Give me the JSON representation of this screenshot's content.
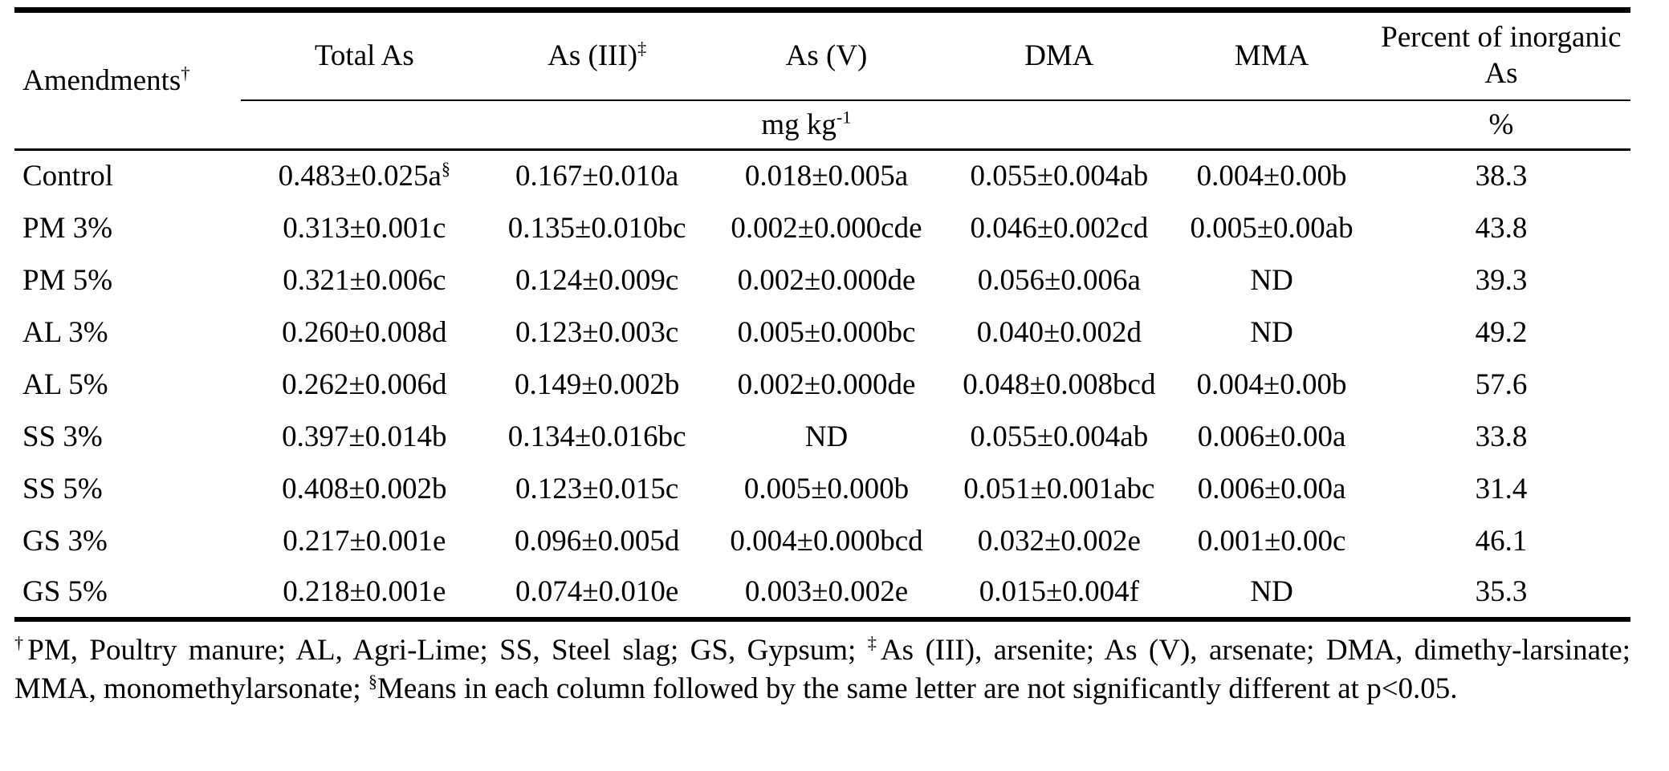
{
  "table": {
    "amendments_header": {
      "label": "Amendments",
      "sup": "†"
    },
    "column_headers": [
      {
        "label": "Total As",
        "sup": ""
      },
      {
        "label": "As (III)",
        "sup": "‡"
      },
      {
        "label": "As (V)",
        "sup": ""
      },
      {
        "label": "DMA",
        "sup": ""
      },
      {
        "label": "MMA",
        "sup": ""
      },
      {
        "label": "Percent of inorganic As",
        "sup": ""
      }
    ],
    "units": {
      "concentration": "mg kg",
      "concentration_sup": "-1",
      "percent": "%"
    },
    "rows": [
      {
        "amendment": "Control",
        "total_as": "0.483±0.025a",
        "total_as_sup": "§",
        "as3": "0.167±0.010a",
        "as5": "0.018±0.005a",
        "dma": "0.055±0.004ab",
        "mma": "0.004±0.00b",
        "percent": "38.3"
      },
      {
        "amendment": "PM 3%",
        "total_as": "0.313±0.001c",
        "as3": "0.135±0.010bc",
        "as5": "0.002±0.000cde",
        "dma": "0.046±0.002cd",
        "mma": "0.005±0.00ab",
        "percent": "43.8"
      },
      {
        "amendment": "PM 5%",
        "total_as": "0.321±0.006c",
        "as3": "0.124±0.009c",
        "as5": "0.002±0.000de",
        "dma": "0.056±0.006a",
        "mma": "ND",
        "percent": "39.3"
      },
      {
        "amendment": "AL 3%",
        "total_as": "0.260±0.008d",
        "as3": "0.123±0.003c",
        "as5": "0.005±0.000bc",
        "dma": "0.040±0.002d",
        "mma": "ND",
        "percent": "49.2"
      },
      {
        "amendment": "AL 5%",
        "total_as": "0.262±0.006d",
        "as3": "0.149±0.002b",
        "as5": "0.002±0.000de",
        "dma": "0.048±0.008bcd",
        "mma": "0.004±0.00b",
        "percent": "57.6"
      },
      {
        "amendment": "SS 3%",
        "total_as": "0.397±0.014b",
        "as3": "0.134±0.016bc",
        "as5": "ND",
        "dma": "0.055±0.004ab",
        "mma": "0.006±0.00a",
        "percent": "33.8"
      },
      {
        "amendment": "SS 5%",
        "total_as": "0.408±0.002b",
        "as3": "0.123±0.015c",
        "as5": "0.005±0.000b",
        "dma": "0.051±0.001abc",
        "mma": "0.006±0.00a",
        "percent": "31.4"
      },
      {
        "amendment": "GS 3%",
        "total_as": "0.217±0.001e",
        "as3": "0.096±0.005d",
        "as5": "0.004±0.000bcd",
        "dma": "0.032±0.002e",
        "mma": "0.001±0.00c",
        "percent": "46.1"
      },
      {
        "amendment": "GS 5%",
        "total_as": "0.218±0.001e",
        "as3": "0.074±0.010e",
        "as5": "0.003±0.002e",
        "dma": "0.015±0.004f",
        "mma": "ND",
        "percent": "35.3"
      }
    ]
  },
  "footnote": {
    "parts": [
      {
        "sup": "†",
        "text": "PM, Poultry manure; AL, Agri-Lime; SS, Steel slag; GS, Gypsum; "
      },
      {
        "sup": "‡",
        "text": "As (III), arsenite; As (V), arsenate; DMA, dimethy-larsinate; MMA, monomethylarsonate; "
      },
      {
        "sup": "§",
        "text": "Means in each column followed by the same letter are not significantly different at p<0.05."
      }
    ]
  }
}
